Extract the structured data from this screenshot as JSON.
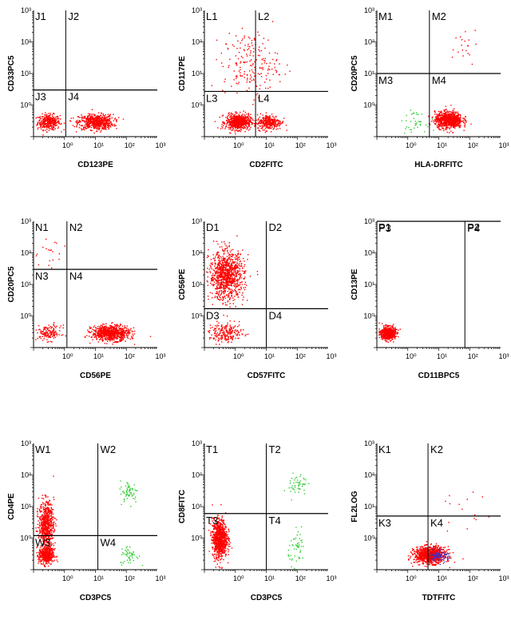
{
  "colors": {
    "dots": "#ff0000",
    "green_dots": "#33cc33",
    "blue_dots": "#3333cc",
    "axis": "#000000"
  },
  "chart_data": [
    {
      "type": "scatter",
      "xlabel": "CD123PE",
      "ylabel": "CD33PC5",
      "xlim": [
        0.1,
        1000
      ],
      "ylim": [
        0.1,
        1000
      ],
      "scale": "log",
      "x_ticks": [
        "10⁰",
        "10¹",
        "10²",
        "10³"
      ],
      "y_ticks": [
        "10⁰",
        "10¹",
        "10²",
        "10³"
      ],
      "quadrant_labels": [
        "J1",
        "J2",
        "J3",
        "J4"
      ],
      "gate": {
        "x": 1.1,
        "y": 3.0
      },
      "clusters": [
        {
          "x": 0.3,
          "y": 0.3,
          "n": 350,
          "sx": 0.18,
          "sy": 0.12,
          "color": "red"
        },
        {
          "x": 10,
          "y": 0.3,
          "n": 650,
          "sx": 0.28,
          "sy": 0.12,
          "color": "red"
        }
      ]
    },
    {
      "type": "scatter",
      "xlabel": "CD2FITC",
      "ylabel": "CD117PE",
      "xlim": [
        0.1,
        1000
      ],
      "ylim": [
        0.1,
        1000
      ],
      "scale": "log",
      "x_ticks": [
        "10⁰",
        "10¹",
        "10²",
        "10³"
      ],
      "y_ticks": [
        "10⁰",
        "10¹",
        "10²",
        "10³"
      ],
      "quadrant_labels": [
        "L1",
        "L2",
        "L3",
        "L4"
      ],
      "gate": {
        "x": 4.5,
        "y": 2.7
      },
      "clusters": [
        {
          "x": 1.2,
          "y": 0.3,
          "n": 650,
          "sx": 0.2,
          "sy": 0.12,
          "color": "red"
        },
        {
          "x": 12,
          "y": 0.3,
          "n": 300,
          "sx": 0.2,
          "sy": 0.12,
          "color": "red"
        },
        {
          "x": 3,
          "y": 20,
          "n": 200,
          "sx": 0.45,
          "sy": 0.5,
          "color": "red"
        }
      ]
    },
    {
      "type": "scatter",
      "xlabel": "HLA-DRFITC",
      "ylabel": "CD20PC5",
      "xlim": [
        0.1,
        1000
      ],
      "ylim": [
        0.1,
        1000
      ],
      "scale": "log",
      "x_ticks": [
        "10⁰",
        "10¹",
        "10²",
        "10³"
      ],
      "y_ticks": [
        "10⁰",
        "10¹",
        "10²",
        "10³"
      ],
      "quadrant_labels": [
        "M1",
        "M2",
        "M3",
        "M4"
      ],
      "gate": {
        "x": 5.0,
        "y": 10.0
      },
      "clusters": [
        {
          "x": 20,
          "y": 0.35,
          "n": 850,
          "sx": 0.22,
          "sy": 0.13,
          "color": "red"
        },
        {
          "x": 70,
          "y": 100,
          "n": 20,
          "sx": 0.3,
          "sy": 0.3,
          "color": "red"
        },
        {
          "x": 1.5,
          "y": 0.3,
          "n": 40,
          "sx": 0.2,
          "sy": 0.15,
          "color": "green"
        }
      ]
    },
    {
      "type": "scatter",
      "xlabel": "CD56PE",
      "ylabel": "CD20PC5",
      "xlim": [
        0.1,
        1000
      ],
      "ylim": [
        0.1,
        1000
      ],
      "scale": "log",
      "x_ticks": [
        "10⁰",
        "10¹",
        "10²",
        "10³"
      ],
      "y_ticks": [
        "10⁰",
        "10¹",
        "10²",
        "10³"
      ],
      "quadrant_labels": [
        "N1",
        "N2",
        "N3",
        "N4"
      ],
      "gate": {
        "x": 1.2,
        "y": 30.0
      },
      "clusters": [
        {
          "x": 0.3,
          "y": 0.3,
          "n": 150,
          "sx": 0.2,
          "sy": 0.12,
          "color": "red"
        },
        {
          "x": 30,
          "y": 0.3,
          "n": 800,
          "sx": 0.3,
          "sy": 0.12,
          "color": "red"
        },
        {
          "x": 0.3,
          "y": 100,
          "n": 20,
          "sx": 0.3,
          "sy": 0.3,
          "color": "red"
        }
      ]
    },
    {
      "type": "scatter",
      "xlabel": "CD57FITC",
      "ylabel": "CD56PE",
      "xlim": [
        0.1,
        1000
      ],
      "ylim": [
        0.1,
        1000
      ],
      "scale": "log",
      "x_ticks": [
        "10⁰",
        "10¹",
        "10²",
        "10³"
      ],
      "y_ticks": [
        "10⁰",
        "10¹",
        "10²",
        "10³"
      ],
      "quadrant_labels": [
        "D1",
        "D2",
        "D3",
        "D4"
      ],
      "gate": {
        "x": 10.0,
        "y": 1.7
      },
      "clusters": [
        {
          "x": 0.5,
          "y": 20,
          "n": 1000,
          "sx": 0.28,
          "sy": 0.38,
          "color": "red"
        },
        {
          "x": 0.5,
          "y": 0.3,
          "n": 220,
          "sx": 0.28,
          "sy": 0.15,
          "color": "red"
        }
      ]
    },
    {
      "type": "scatter",
      "xlabel": "CD11BPC5",
      "ylabel": "CD13PE",
      "xlim": [
        0.1,
        1000
      ],
      "ylim": [
        0.1,
        1000
      ],
      "scale": "log",
      "x_ticks": [
        "10⁰",
        "10¹",
        "10²",
        "10³"
      ],
      "y_ticks": [
        "10⁰",
        "10¹",
        "10²",
        "10³"
      ],
      "quadrant_labels": [
        "P1",
        "P2",
        "P3",
        "P4"
      ],
      "gate": {
        "x": 70.0,
        "y": 1000
      },
      "clusters": [
        {
          "x": 0.22,
          "y": 0.3,
          "n": 600,
          "sx": 0.12,
          "sy": 0.1,
          "color": "red"
        }
      ]
    },
    {
      "type": "scatter",
      "xlabel": "CD3PC5",
      "ylabel": "CD4PE",
      "xlim": [
        0.1,
        1000
      ],
      "ylim": [
        0.1,
        1000
      ],
      "scale": "log",
      "x_ticks": [
        "10⁰",
        "10¹",
        "10²",
        "10³"
      ],
      "y_ticks": [
        "10⁰",
        "10¹",
        "10²",
        "10³"
      ],
      "quadrant_labels": [
        "W1",
        "W2",
        "W3",
        "W4"
      ],
      "gate": {
        "x": 12.0,
        "y": 1.2
      },
      "clusters": [
        {
          "x": 0.25,
          "y": 3,
          "n": 650,
          "sx": 0.12,
          "sy": 0.35,
          "color": "red"
        },
        {
          "x": 0.25,
          "y": 0.3,
          "n": 450,
          "sx": 0.12,
          "sy": 0.15,
          "color": "red"
        },
        {
          "x": 120,
          "y": 30,
          "n": 60,
          "sx": 0.15,
          "sy": 0.18,
          "color": "green"
        },
        {
          "x": 120,
          "y": 0.3,
          "n": 50,
          "sx": 0.15,
          "sy": 0.15,
          "color": "green"
        }
      ]
    },
    {
      "type": "scatter",
      "xlabel": "CD3PC5",
      "ylabel": "CD8FITC",
      "xlim": [
        0.1,
        1000
      ],
      "ylim": [
        0.1,
        1000
      ],
      "scale": "log",
      "x_ticks": [
        "10⁰",
        "10¹",
        "10²",
        "10³"
      ],
      "y_ticks": [
        "10⁰",
        "10¹",
        "10²",
        "10³"
      ],
      "quadrant_labels": [
        "T1",
        "T2",
        "T3",
        "T4"
      ],
      "gate": {
        "x": 10.0,
        "y": 6.0
      },
      "clusters": [
        {
          "x": 0.3,
          "y": 1,
          "n": 900,
          "sx": 0.12,
          "sy": 0.3,
          "color": "red"
        },
        {
          "x": 100,
          "y": 50,
          "n": 50,
          "sx": 0.15,
          "sy": 0.2,
          "color": "green"
        },
        {
          "x": 100,
          "y": 0.5,
          "n": 50,
          "sx": 0.15,
          "sy": 0.25,
          "color": "green"
        }
      ]
    },
    {
      "type": "scatter",
      "xlabel": "TDTFITC",
      "ylabel": "FL2LOG",
      "xlim": [
        0.1,
        1000
      ],
      "ylim": [
        0.1,
        1000
      ],
      "scale": "log",
      "x_ticks": [
        "10⁰",
        "10¹",
        "10²",
        "10³"
      ],
      "y_ticks": [
        "10⁰",
        "10¹",
        "10²",
        "10³"
      ],
      "quadrant_labels": [
        "K1",
        "K2",
        "K3",
        "K4"
      ],
      "gate": {
        "x": 4.5,
        "y": 5.0
      },
      "clusters": [
        {
          "x": 5,
          "y": 0.3,
          "n": 1000,
          "sx": 0.25,
          "sy": 0.13,
          "color": "red"
        },
        {
          "x": 10,
          "y": 0.3,
          "n": 80,
          "sx": 0.15,
          "sy": 0.1,
          "color": "blue"
        },
        {
          "x": 60,
          "y": 5,
          "n": 15,
          "sx": 0.4,
          "sy": 0.4,
          "color": "red"
        }
      ]
    }
  ]
}
